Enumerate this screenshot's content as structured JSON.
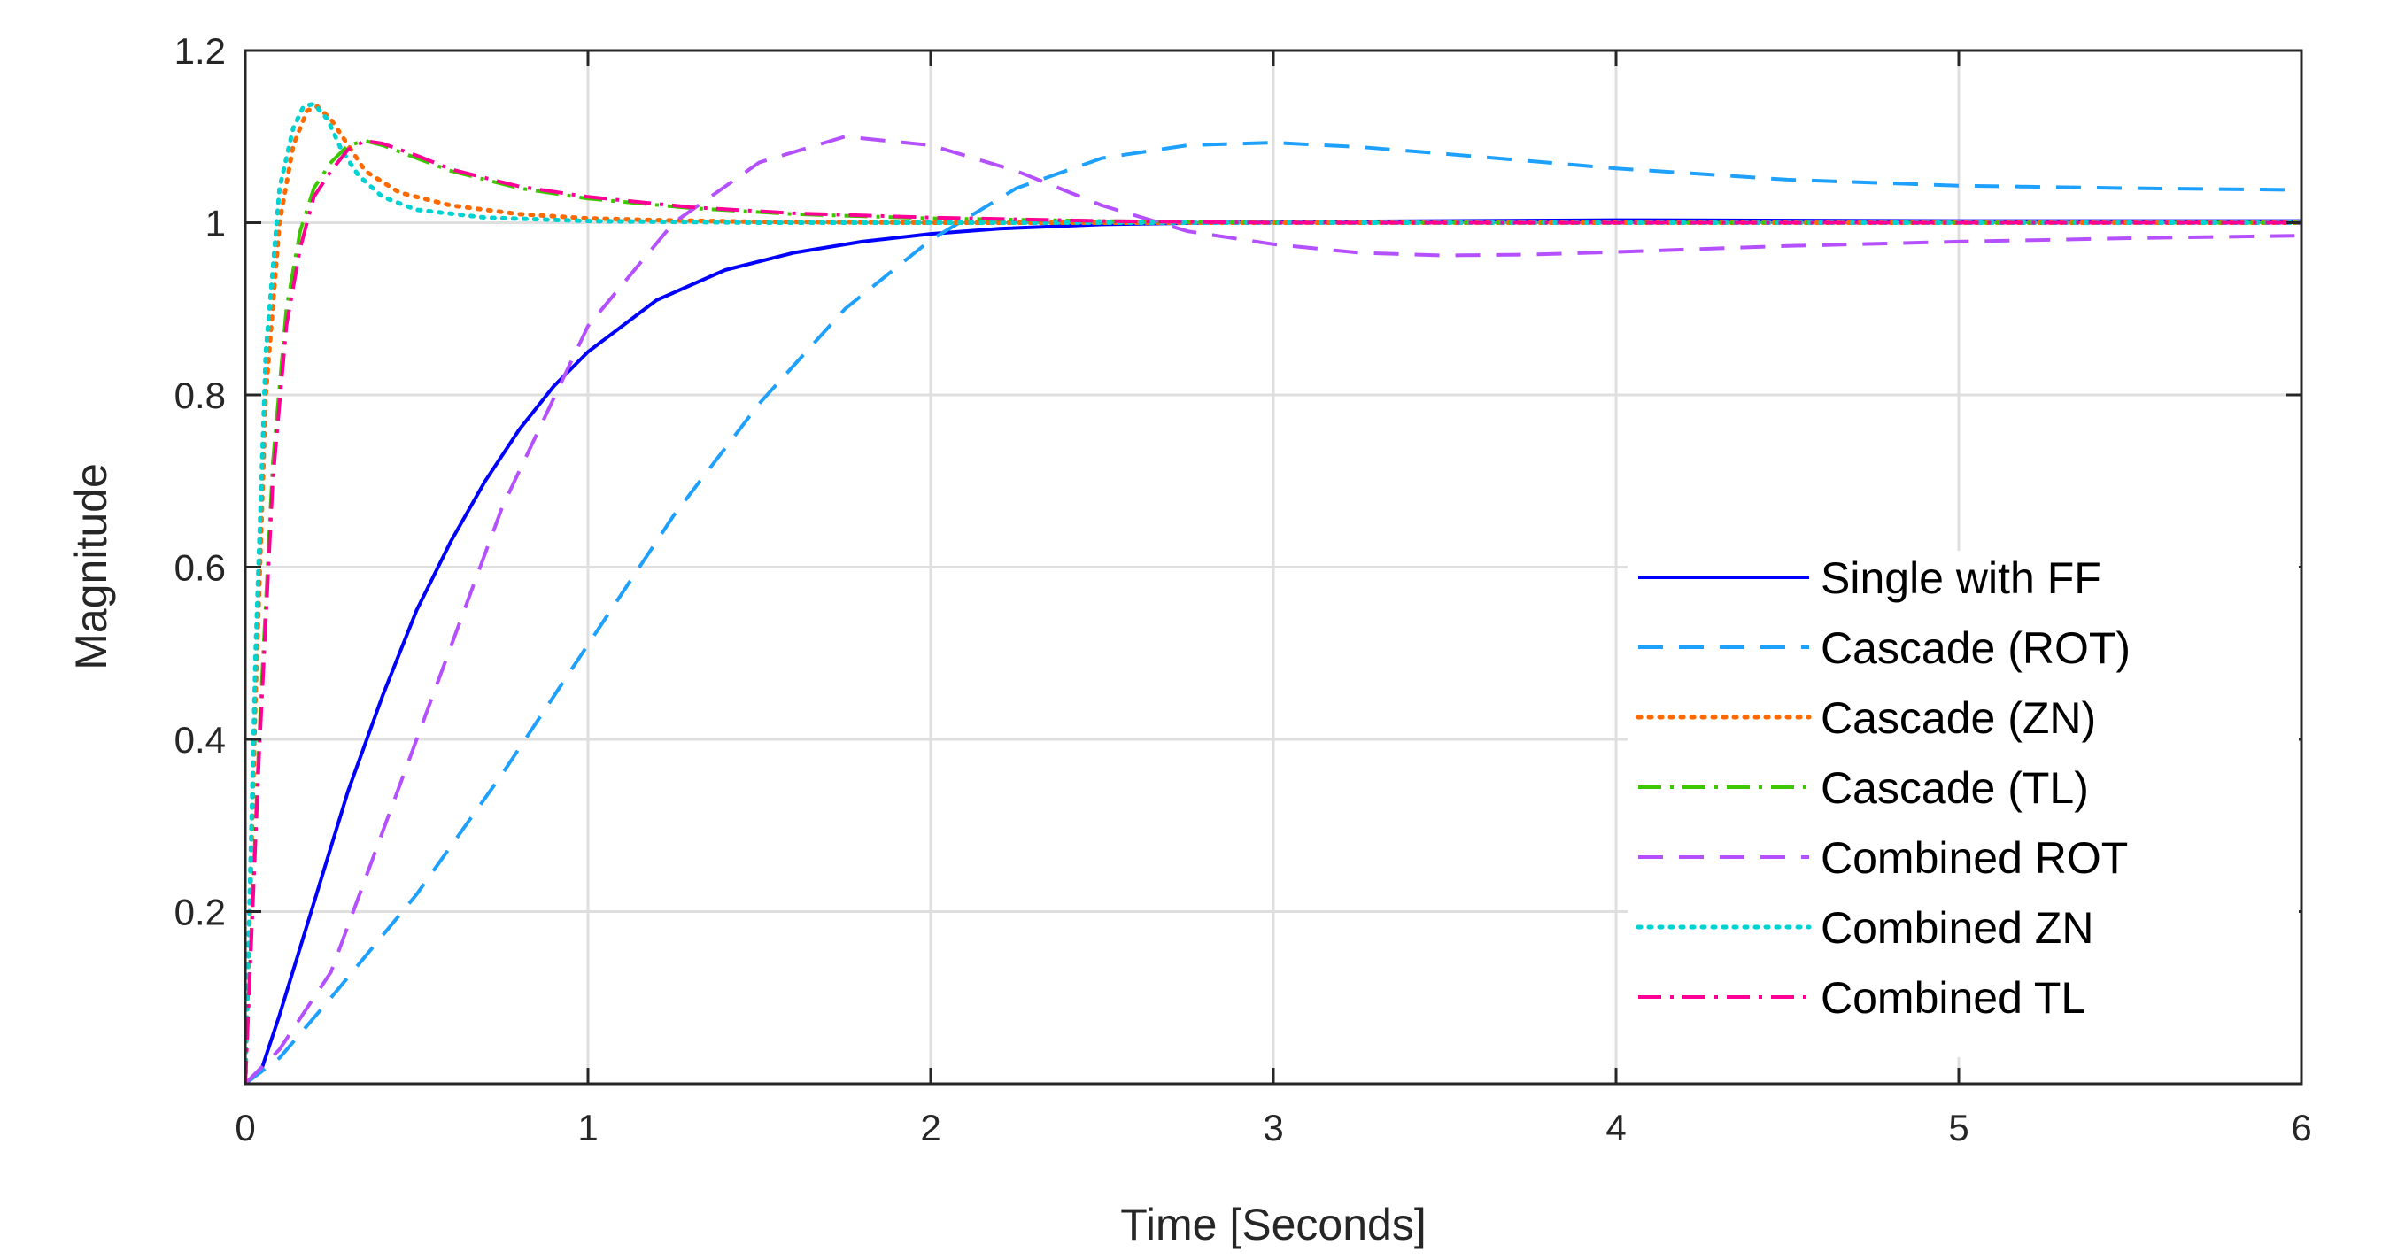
{
  "chart_data": {
    "type": "line",
    "xlabel": "Time [Seconds]",
    "ylabel": "Magnitude",
    "xlim": [
      0,
      6
    ],
    "ylim": [
      0,
      1.2
    ],
    "xticks": [
      0,
      1,
      2,
      3,
      4,
      5,
      6
    ],
    "xtick_labels": [
      "0",
      "1",
      "2",
      "3",
      "4",
      "5",
      "6"
    ],
    "yticks": [
      0.2,
      0.4,
      0.6,
      0.8,
      1.0,
      1.2
    ],
    "ytick_labels": [
      "0.2",
      "0.4",
      "0.6",
      "0.8",
      "1",
      "1.2"
    ],
    "grid": true,
    "legend_position": "lower-right",
    "series": [
      {
        "name": "Single with FF",
        "color": "#0000ff",
        "style": "solid",
        "x": [
          0,
          0.05,
          0.1,
          0.2,
          0.3,
          0.4,
          0.5,
          0.6,
          0.7,
          0.8,
          0.9,
          1.0,
          1.2,
          1.4,
          1.6,
          1.8,
          2.0,
          2.2,
          2.5,
          3.0,
          4.0,
          5.0,
          6.0
        ],
        "y": [
          0,
          0.02,
          0.08,
          0.21,
          0.34,
          0.45,
          0.55,
          0.63,
          0.7,
          0.76,
          0.81,
          0.85,
          0.91,
          0.945,
          0.965,
          0.978,
          0.987,
          0.993,
          0.998,
          1.001,
          1.003,
          1.002,
          1.002
        ]
      },
      {
        "name": "Cascade (ROT)",
        "color": "#1ea0ff",
        "style": "dashed",
        "x": [
          0,
          0.1,
          0.25,
          0.5,
          0.75,
          1.0,
          1.25,
          1.5,
          1.75,
          2.0,
          2.25,
          2.5,
          2.75,
          3.0,
          3.25,
          3.5,
          4.0,
          4.5,
          5.0,
          5.5,
          6.0
        ],
        "y": [
          0,
          0.03,
          0.1,
          0.22,
          0.36,
          0.51,
          0.66,
          0.79,
          0.9,
          0.98,
          1.04,
          1.075,
          1.09,
          1.093,
          1.088,
          1.08,
          1.063,
          1.05,
          1.043,
          1.04,
          1.038
        ]
      },
      {
        "name": "Cascade (ZN)",
        "color": "#ff6a00",
        "style": "dotted",
        "x": [
          0,
          0.03,
          0.06,
          0.1,
          0.14,
          0.18,
          0.21,
          0.25,
          0.3,
          0.35,
          0.45,
          0.6,
          0.8,
          1.0,
          1.2,
          1.5,
          2.0,
          3.0,
          6.0
        ],
        "y": [
          0,
          0.45,
          0.8,
          1.0,
          1.09,
          1.13,
          1.135,
          1.12,
          1.09,
          1.06,
          1.035,
          1.02,
          1.01,
          1.005,
          1.003,
          1.001,
          1.0,
          1.0,
          1.0
        ]
      },
      {
        "name": "Cascade (TL)",
        "color": "#3cc800",
        "style": "dashdot",
        "x": [
          0,
          0.04,
          0.08,
          0.12,
          0.16,
          0.2,
          0.25,
          0.3,
          0.35,
          0.4,
          0.5,
          0.6,
          0.8,
          1.0,
          1.3,
          1.6,
          2.0,
          2.5,
          3.0,
          6.0
        ],
        "y": [
          0,
          0.4,
          0.72,
          0.9,
          0.99,
          1.04,
          1.07,
          1.09,
          1.095,
          1.09,
          1.075,
          1.06,
          1.04,
          1.028,
          1.017,
          1.01,
          1.005,
          1.002,
          1.0,
          1.0
        ]
      },
      {
        "name": "Combined ROT",
        "color": "#b450ff",
        "style": "dashed",
        "x": [
          0,
          0.1,
          0.25,
          0.5,
          0.75,
          1.0,
          1.25,
          1.5,
          1.75,
          2.0,
          2.25,
          2.5,
          2.75,
          3.0,
          3.25,
          3.5,
          3.75,
          4.0,
          4.5,
          5.0,
          5.5,
          6.0
        ],
        "y": [
          0,
          0.04,
          0.13,
          0.4,
          0.67,
          0.88,
          1.0,
          1.07,
          1.1,
          1.09,
          1.06,
          1.02,
          0.99,
          0.975,
          0.965,
          0.962,
          0.963,
          0.966,
          0.973,
          0.978,
          0.982,
          0.985
        ]
      },
      {
        "name": "Combined ZN",
        "color": "#00d2d2",
        "style": "dotted",
        "x": [
          0,
          0.03,
          0.06,
          0.1,
          0.14,
          0.17,
          0.2,
          0.24,
          0.28,
          0.33,
          0.4,
          0.5,
          0.7,
          1.0,
          1.5,
          2.0,
          6.0
        ],
        "y": [
          0,
          0.5,
          0.85,
          1.04,
          1.11,
          1.135,
          1.138,
          1.12,
          1.085,
          1.055,
          1.03,
          1.015,
          1.006,
          1.002,
          1.0,
          1.0,
          1.0
        ]
      },
      {
        "name": "Combined TL",
        "color": "#ff0096",
        "style": "dashdot",
        "x": [
          0,
          0.04,
          0.08,
          0.12,
          0.16,
          0.2,
          0.25,
          0.3,
          0.35,
          0.4,
          0.5,
          0.6,
          0.8,
          1.0,
          1.3,
          1.6,
          2.0,
          2.5,
          3.0,
          6.0
        ],
        "y": [
          0,
          0.38,
          0.7,
          0.88,
          0.97,
          1.03,
          1.06,
          1.085,
          1.095,
          1.092,
          1.078,
          1.062,
          1.042,
          1.03,
          1.018,
          1.011,
          1.006,
          1.002,
          1.0,
          1.0
        ]
      }
    ]
  }
}
